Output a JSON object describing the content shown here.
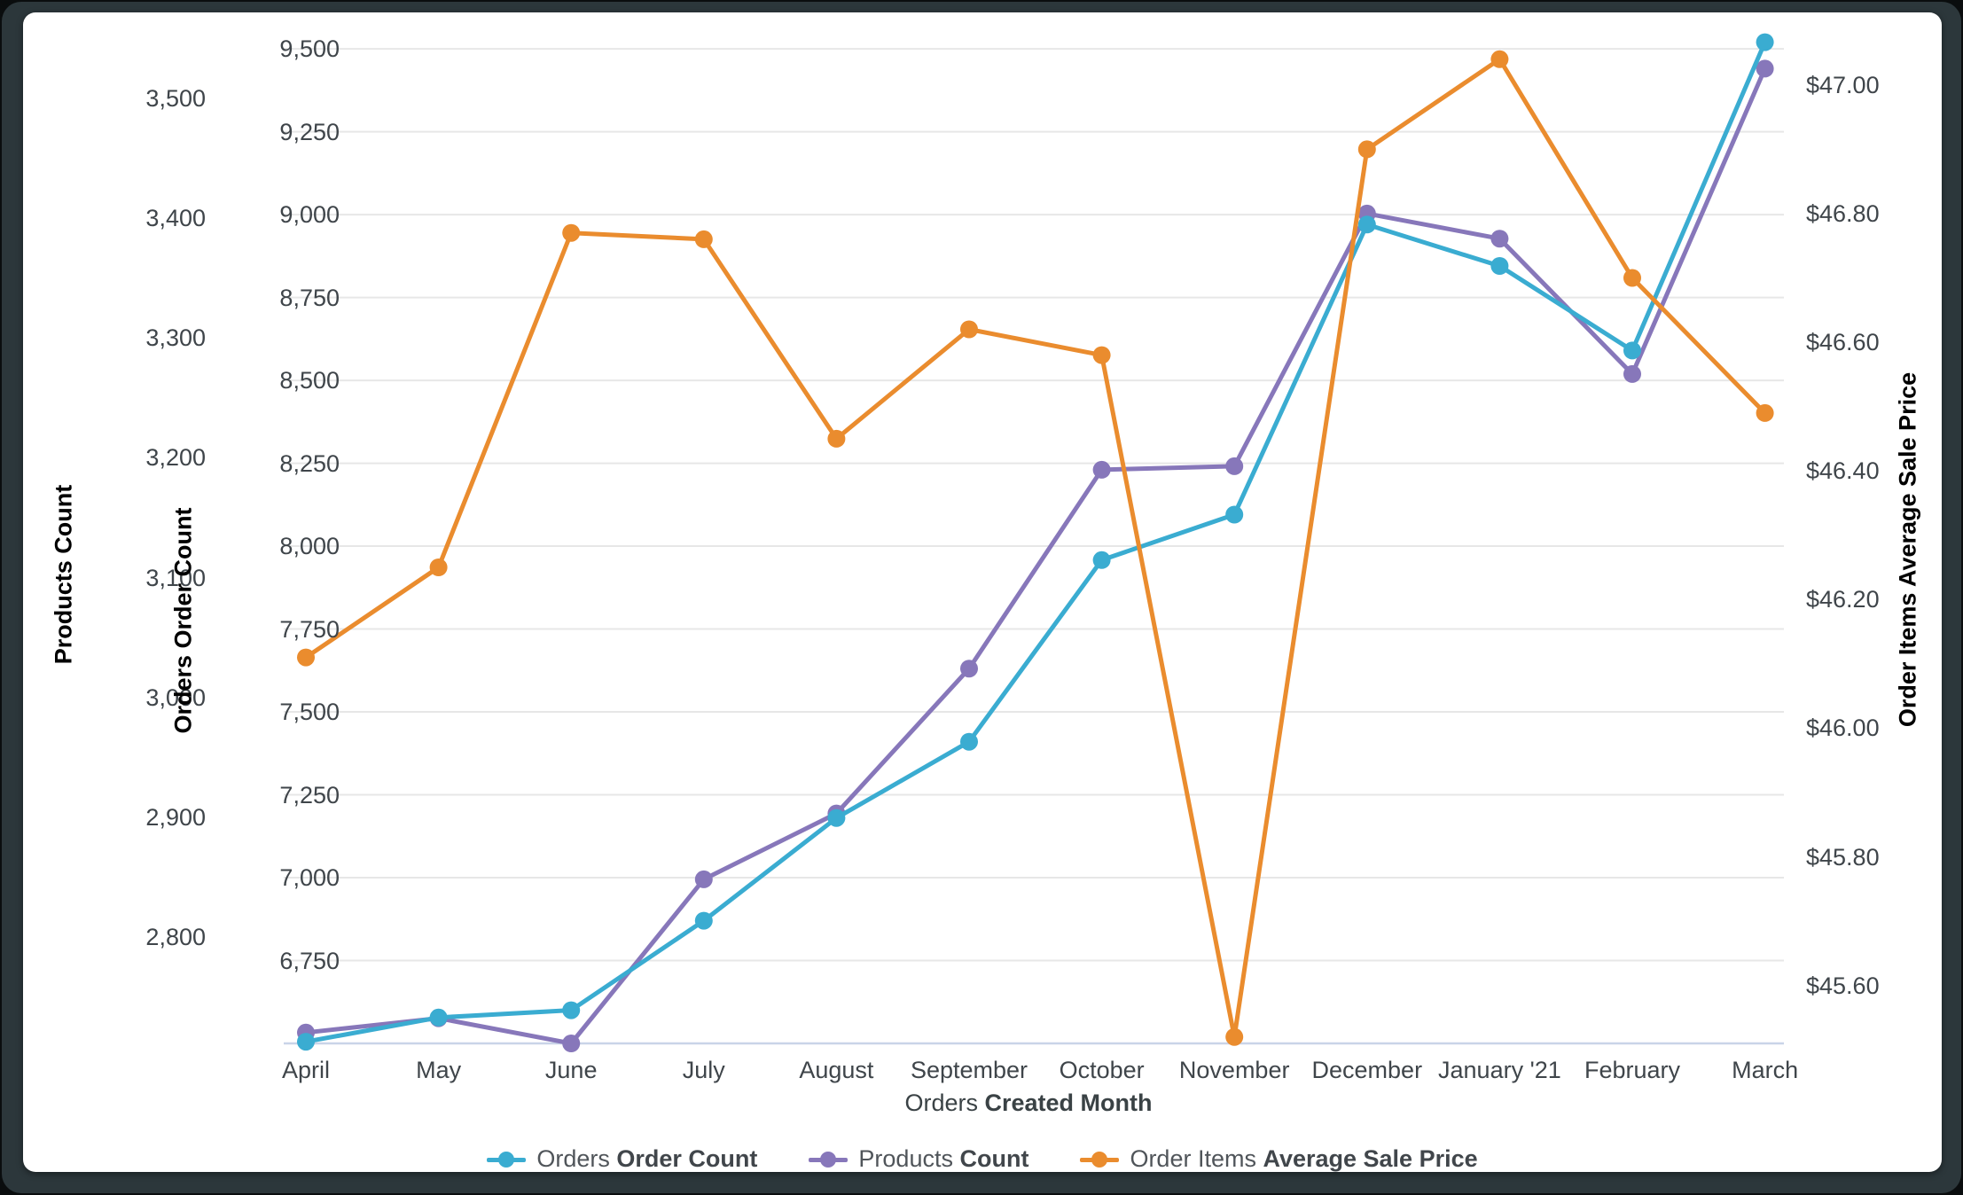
{
  "chart_data": {
    "type": "line",
    "categories": [
      "April",
      "May",
      "June",
      "July",
      "August",
      "September",
      "October",
      "November",
      "December",
      "January '21",
      "February",
      "March"
    ],
    "x_title": {
      "prefix": "Orders ",
      "bold": "Created Month"
    },
    "grid": true,
    "legend_position": "bottom",
    "axes": {
      "products": {
        "title": "Products Count",
        "color": "#7d6cb4",
        "min": 2711,
        "max": 3549,
        "ticks": [
          2800,
          2900,
          3000,
          3100,
          3200,
          3300,
          3400,
          3500
        ],
        "side": "left-outer"
      },
      "orders": {
        "title": "Orders Order Count",
        "color": "#35a9ce",
        "min": 6500,
        "max": 9527,
        "ticks": [
          6750,
          7000,
          7250,
          7500,
          7750,
          8000,
          8250,
          8500,
          8750,
          9000,
          9250,
          9500
        ],
        "side": "left-inner",
        "gridlines": true
      },
      "price": {
        "title": "Order Items Average Sale Price",
        "color": "#e8892b",
        "min": 45.51,
        "max": 47.07,
        "ticks": [
          45.6,
          45.8,
          46.0,
          46.2,
          46.4,
          46.6,
          46.8,
          47.0
        ],
        "side": "right",
        "prefix": "$",
        "decimals": 2
      }
    },
    "series": [
      {
        "name": "Products Count",
        "legend_prefix": "Products ",
        "legend_bold": "Count",
        "color": "#8777ba",
        "axis": "products",
        "values": [
          2720,
          2732,
          2711,
          2848,
          2903,
          3024,
          3190,
          3193,
          3404,
          3383,
          3270,
          3525
        ]
      },
      {
        "name": "Orders Order Count",
        "legend_prefix": "Orders ",
        "legend_bold": "Order Count",
        "color": "#3aacd1",
        "axis": "orders",
        "values": [
          6505,
          6578,
          6600,
          6870,
          7180,
          7410,
          7958,
          8095,
          8970,
          8845,
          8590,
          9520
        ]
      },
      {
        "name": "Order Items Average Sale Price",
        "legend_prefix": "Order Items ",
        "legend_bold": "Average Sale Price",
        "color": "#ea8c2e",
        "axis": "price",
        "values": [
          46.11,
          46.25,
          46.77,
          46.76,
          46.45,
          46.62,
          46.58,
          45.52,
          46.9,
          47.04,
          46.7,
          46.49
        ]
      }
    ],
    "legend_order": [
      1,
      0,
      2
    ]
  }
}
